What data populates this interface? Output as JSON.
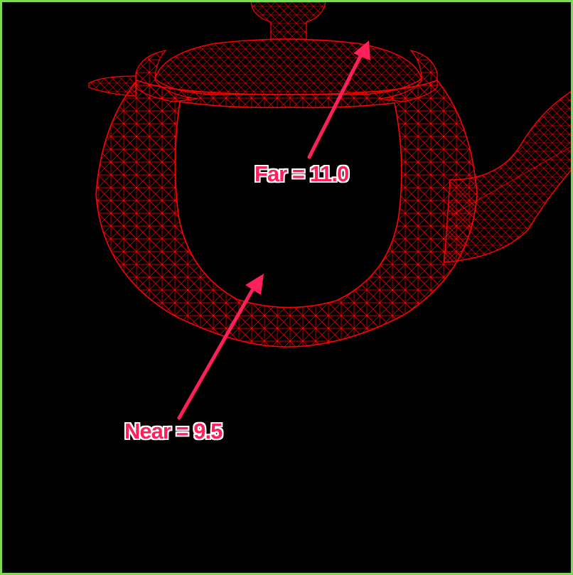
{
  "annotations": {
    "far_label": "Far = 11.0",
    "near_label": "Near = 9.5"
  },
  "colors": {
    "background": "#000000",
    "border": "#7ed957",
    "wireframe": "#ff0000",
    "annotation": "#ff1f5a"
  },
  "icons": {
    "far_arrow": "arrow-up-right-icon",
    "near_arrow": "arrow-up-right-icon"
  }
}
